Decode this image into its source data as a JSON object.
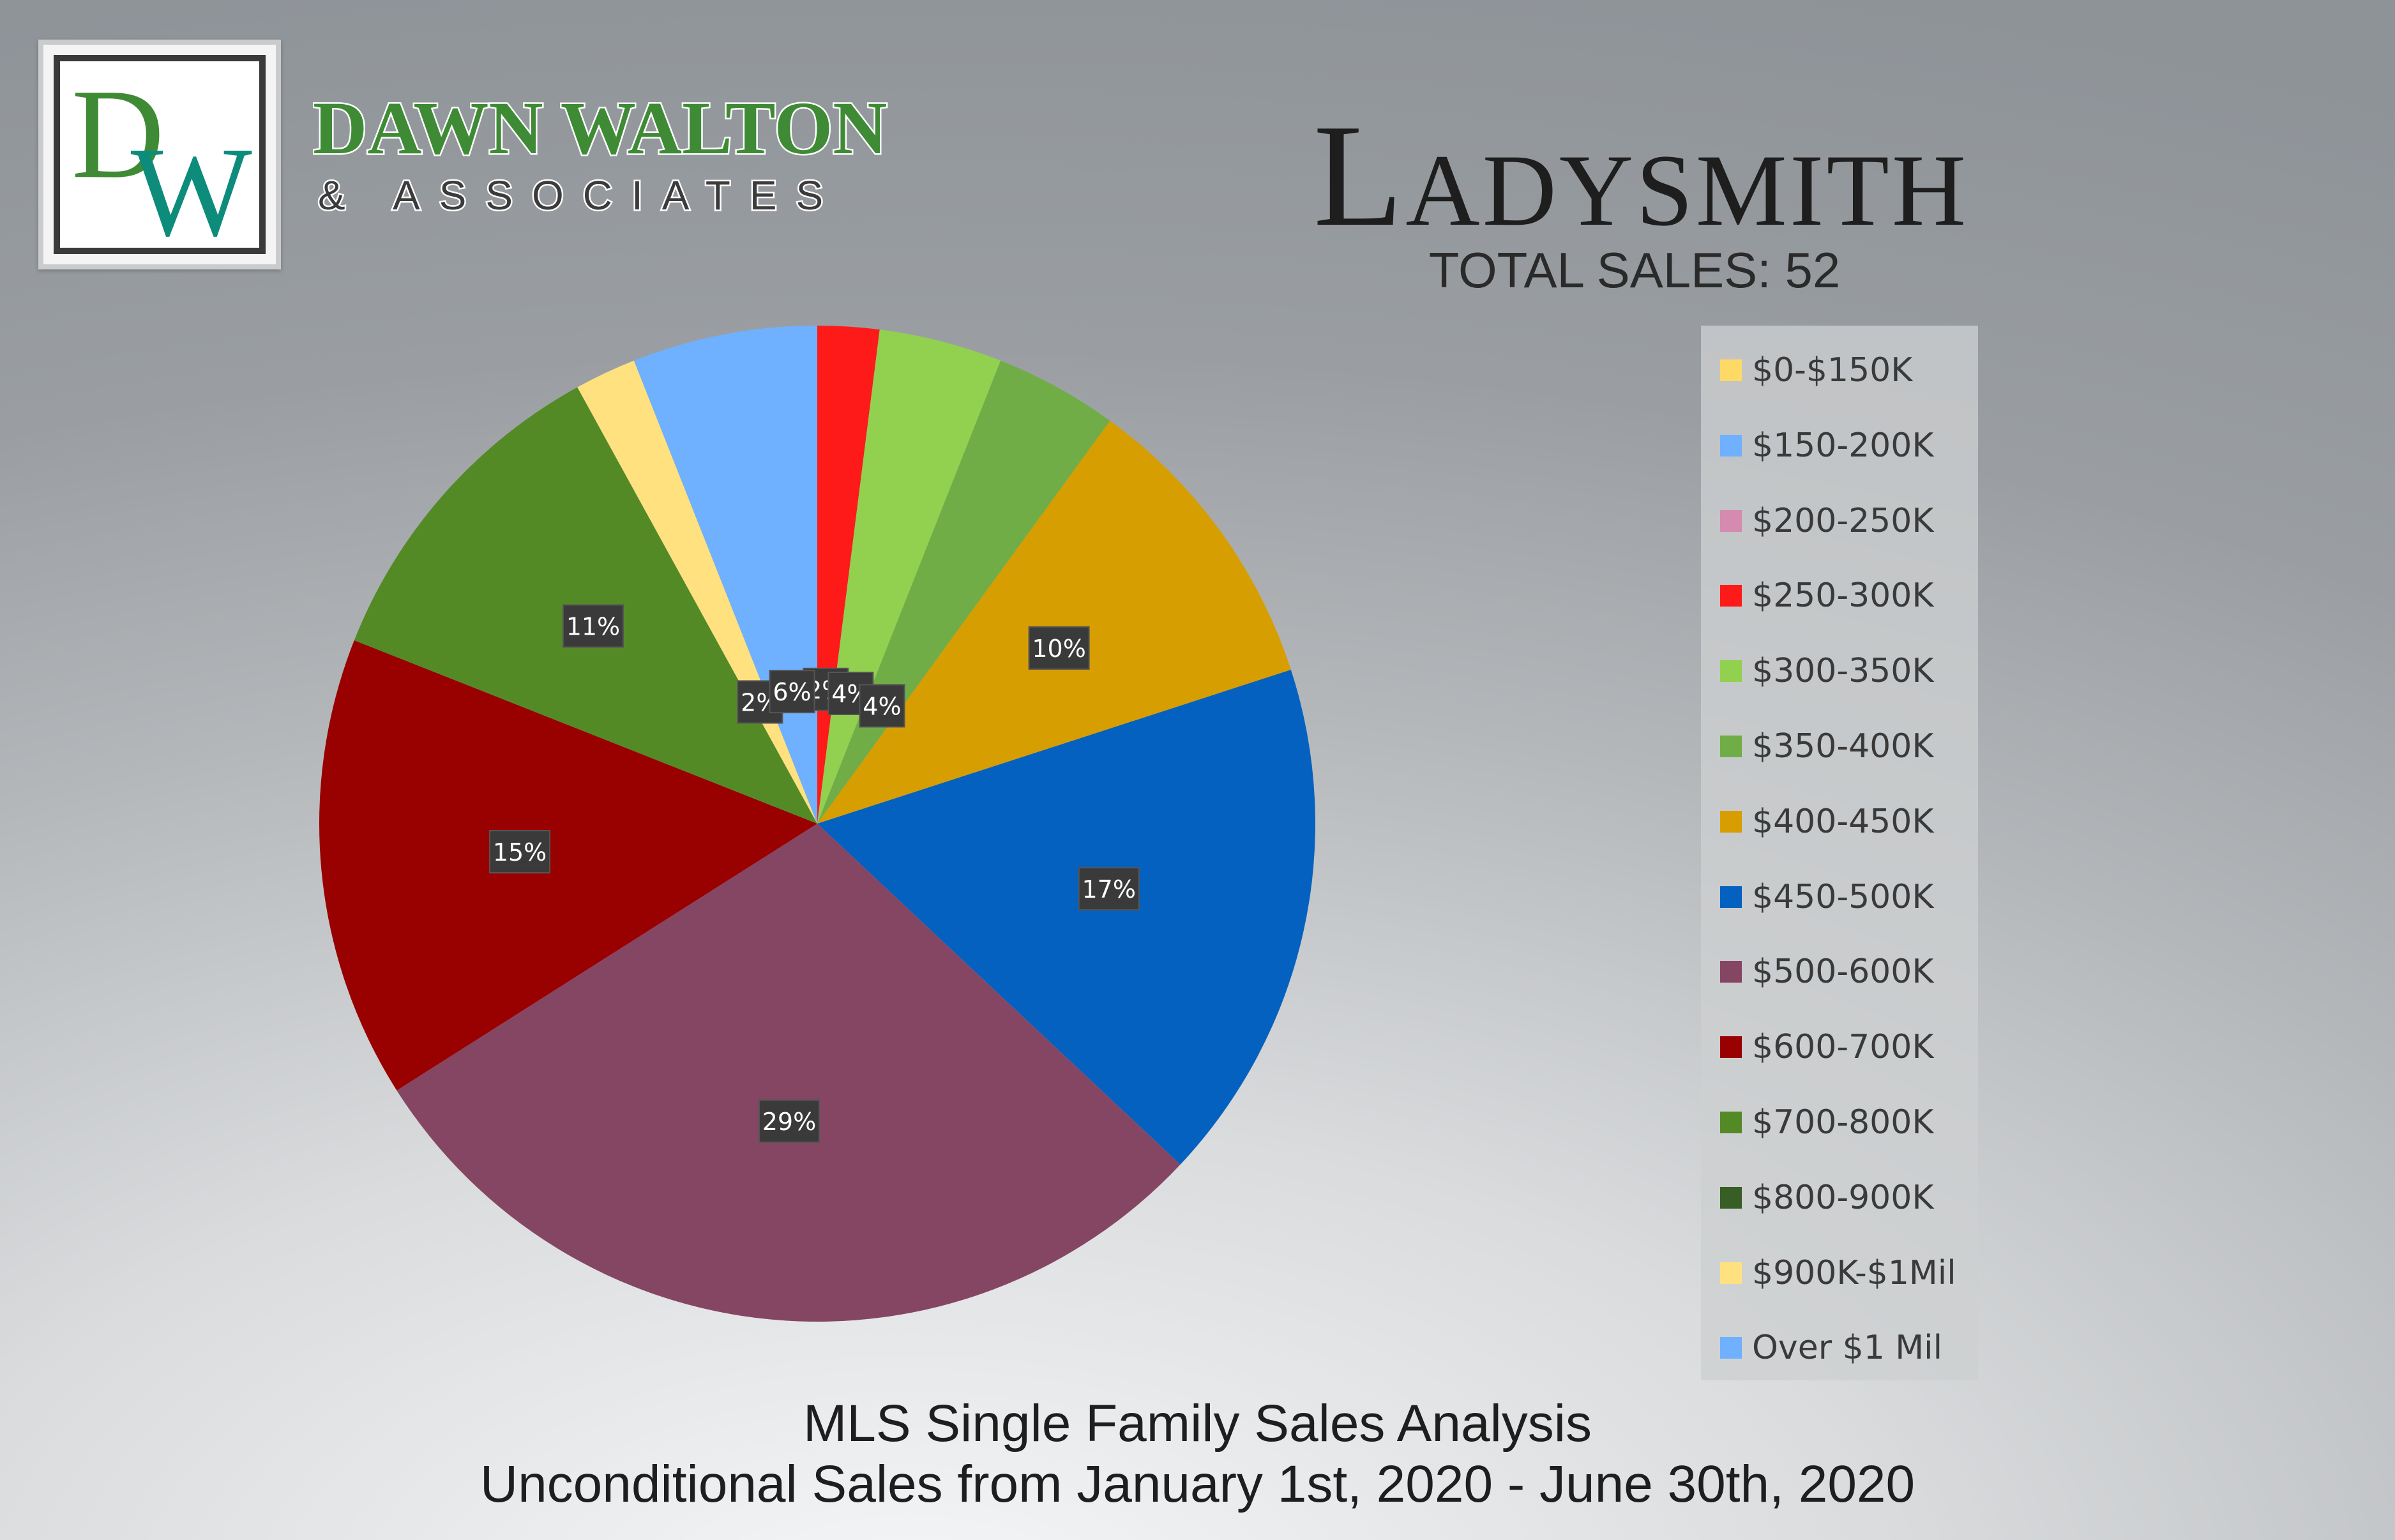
{
  "brand": {
    "logo_monogram": "DW",
    "name_line1": "DAWN WALTON",
    "name_line2": "& ASSOCIATES",
    "colors": {
      "green": "#3f8b35",
      "teal": "#0d8c7c"
    }
  },
  "header": {
    "title": "Ladysmith",
    "total_sales": "TOTAL SALES: 52"
  },
  "footer": {
    "line1": "MLS Single Family Sales Analysis",
    "line2": "Unconditional Sales from January 1st, 2020 - June 30th, 2020"
  },
  "chart_data": {
    "type": "pie",
    "title": "",
    "legend_position": "right",
    "categories": [
      "$0-$150K",
      "$150-200K",
      "$200-250K",
      "$250-300K",
      "$300-350K",
      "$350-400K",
      "$400-450K",
      "$450-500K",
      "$500-600K",
      "$600-700K",
      "$700-800K",
      "$800-900K",
      "$900K-$1Mil",
      "Over $1 Mil"
    ],
    "values": [
      0,
      0,
      0,
      2,
      4,
      4,
      10,
      17,
      29,
      15,
      11,
      0,
      2,
      6
    ],
    "data_labels": [
      "0%",
      "0%",
      "0%",
      "2%",
      "4%",
      "4%",
      "10%",
      "17%",
      "29%",
      "15%",
      "11%",
      "0%",
      "2%",
      "6%"
    ],
    "colors": [
      "#ffd966",
      "#6fb0ff",
      "#d58ab0",
      "#ff1a1a",
      "#92d050",
      "#70ad47",
      "#d69e00",
      "#0561bf",
      "#854664",
      "#990000",
      "#548a26",
      "#375e24",
      "#ffe180",
      "#6fb0ff"
    ]
  }
}
